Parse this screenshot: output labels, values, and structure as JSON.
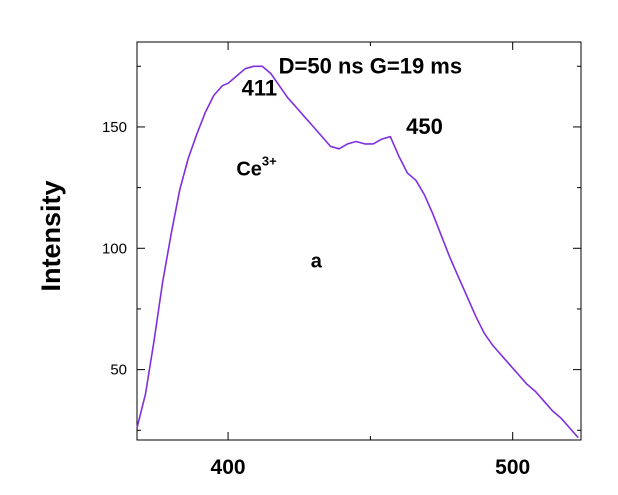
{
  "chart_data": {
    "type": "line",
    "xlabel": "",
    "ylabel": "Intensity",
    "xlim": [
      368,
      524
    ],
    "ylim": [
      21,
      185
    ],
    "x_ticks": [
      400,
      500
    ],
    "y_ticks": [
      50,
      100,
      150
    ],
    "grid": false,
    "line_color": "#7f2fe0",
    "series": [
      {
        "x": [
          368,
          371,
          374,
          377,
          380,
          383,
          386,
          389,
          392,
          395,
          398,
          400,
          403,
          406,
          409,
          412,
          415,
          418,
          421,
          424,
          427,
          430,
          433,
          436,
          439,
          442,
          445,
          448,
          451,
          454,
          457,
          460,
          463,
          466,
          469,
          472,
          475,
          478,
          481,
          484,
          487,
          490,
          493,
          496,
          499,
          502,
          505,
          508,
          511,
          514,
          517,
          520,
          523
        ],
        "y": [
          26,
          40,
          62,
          86,
          106,
          124,
          137,
          147,
          156,
          163,
          167,
          168,
          171,
          174,
          175,
          175,
          172,
          167,
          162,
          158,
          154,
          150,
          146,
          142,
          141,
          143,
          144,
          143,
          143,
          145,
          146,
          138,
          131,
          128,
          122,
          114,
          105,
          96,
          88,
          80,
          72,
          65,
          60,
          56,
          52,
          48,
          44,
          41,
          37,
          33,
          30,
          26,
          22
        ]
      }
    ],
    "annotations": [
      {
        "text": "D=50 ns  G=19 ms",
        "x": 450,
        "y": 172
      },
      {
        "text": "411",
        "x": 411,
        "y": 163
      },
      {
        "text": "450",
        "x": 469,
        "y": 147
      },
      {
        "text": "Ce",
        "sup": "3+",
        "x": 410,
        "y": 130
      },
      {
        "text": "a",
        "x": 431,
        "y": 92
      }
    ]
  }
}
